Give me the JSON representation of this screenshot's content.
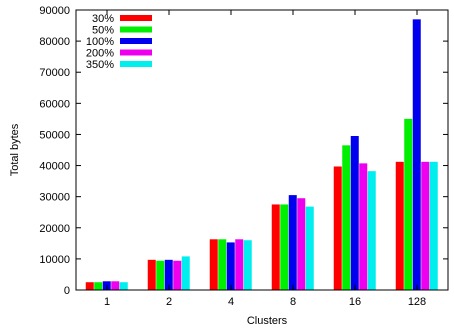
{
  "chart_data": {
    "type": "bar",
    "title": "",
    "xlabel": "Clusters",
    "ylabel": "Total bytes",
    "categories": [
      "1",
      "2",
      "4",
      "8",
      "16",
      "128"
    ],
    "ylim": [
      0,
      90000
    ],
    "yticks": [
      "0",
      "10000",
      "20000",
      "30000",
      "40000",
      "50000",
      "60000",
      "70000",
      "80000",
      "90000"
    ],
    "grid": false,
    "legend_position": "top-left",
    "series": [
      {
        "name": "30%",
        "color": "#ff0000",
        "values": [
          2500,
          9700,
          16300,
          27500,
          39700,
          41200
        ]
      },
      {
        "name": "50%",
        "color": "#00ee00",
        "values": [
          2500,
          9400,
          16300,
          27500,
          46500,
          55000
        ]
      },
      {
        "name": "100%",
        "color": "#0000ee",
        "values": [
          2800,
          9700,
          15300,
          30500,
          49500,
          87000
        ]
      },
      {
        "name": "200%",
        "color": "#ee00ee",
        "values": [
          2800,
          9400,
          16300,
          29500,
          40700,
          41200
        ]
      },
      {
        "name": "350%",
        "color": "#00eeee",
        "values": [
          2500,
          10800,
          16000,
          26800,
          38200,
          41200
        ]
      }
    ]
  }
}
